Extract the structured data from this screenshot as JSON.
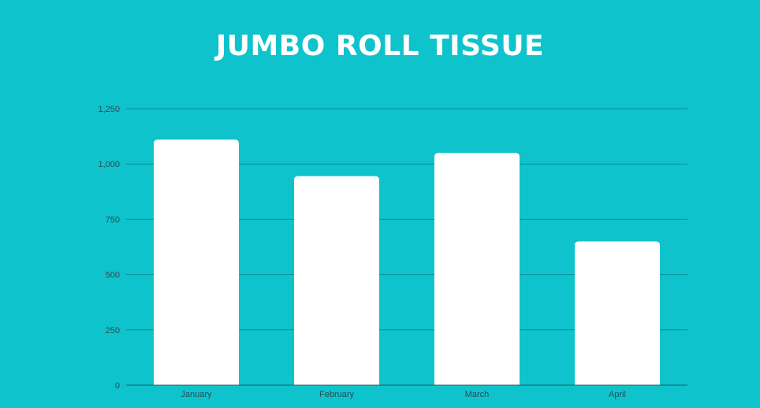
{
  "colors": {
    "background": "#0fc3cc",
    "bar": "#ffffff",
    "gridline": "#0a8e99",
    "title": "#ffffff",
    "tick_text": "#2a4a55"
  },
  "chart_data": {
    "type": "bar",
    "title": "JUMBO ROLL TISSUE",
    "xlabel": "",
    "ylabel": "",
    "categories": [
      "January",
      "February",
      "March",
      "April"
    ],
    "values": [
      1110,
      945,
      1050,
      650
    ],
    "ylim": [
      0,
      1250
    ],
    "yticks": [
      0,
      250,
      500,
      750,
      1000,
      1250
    ],
    "ytick_labels": [
      "0",
      "250",
      "500",
      "750",
      "1,000",
      "1,250"
    ],
    "grid": true,
    "legend": "none"
  }
}
